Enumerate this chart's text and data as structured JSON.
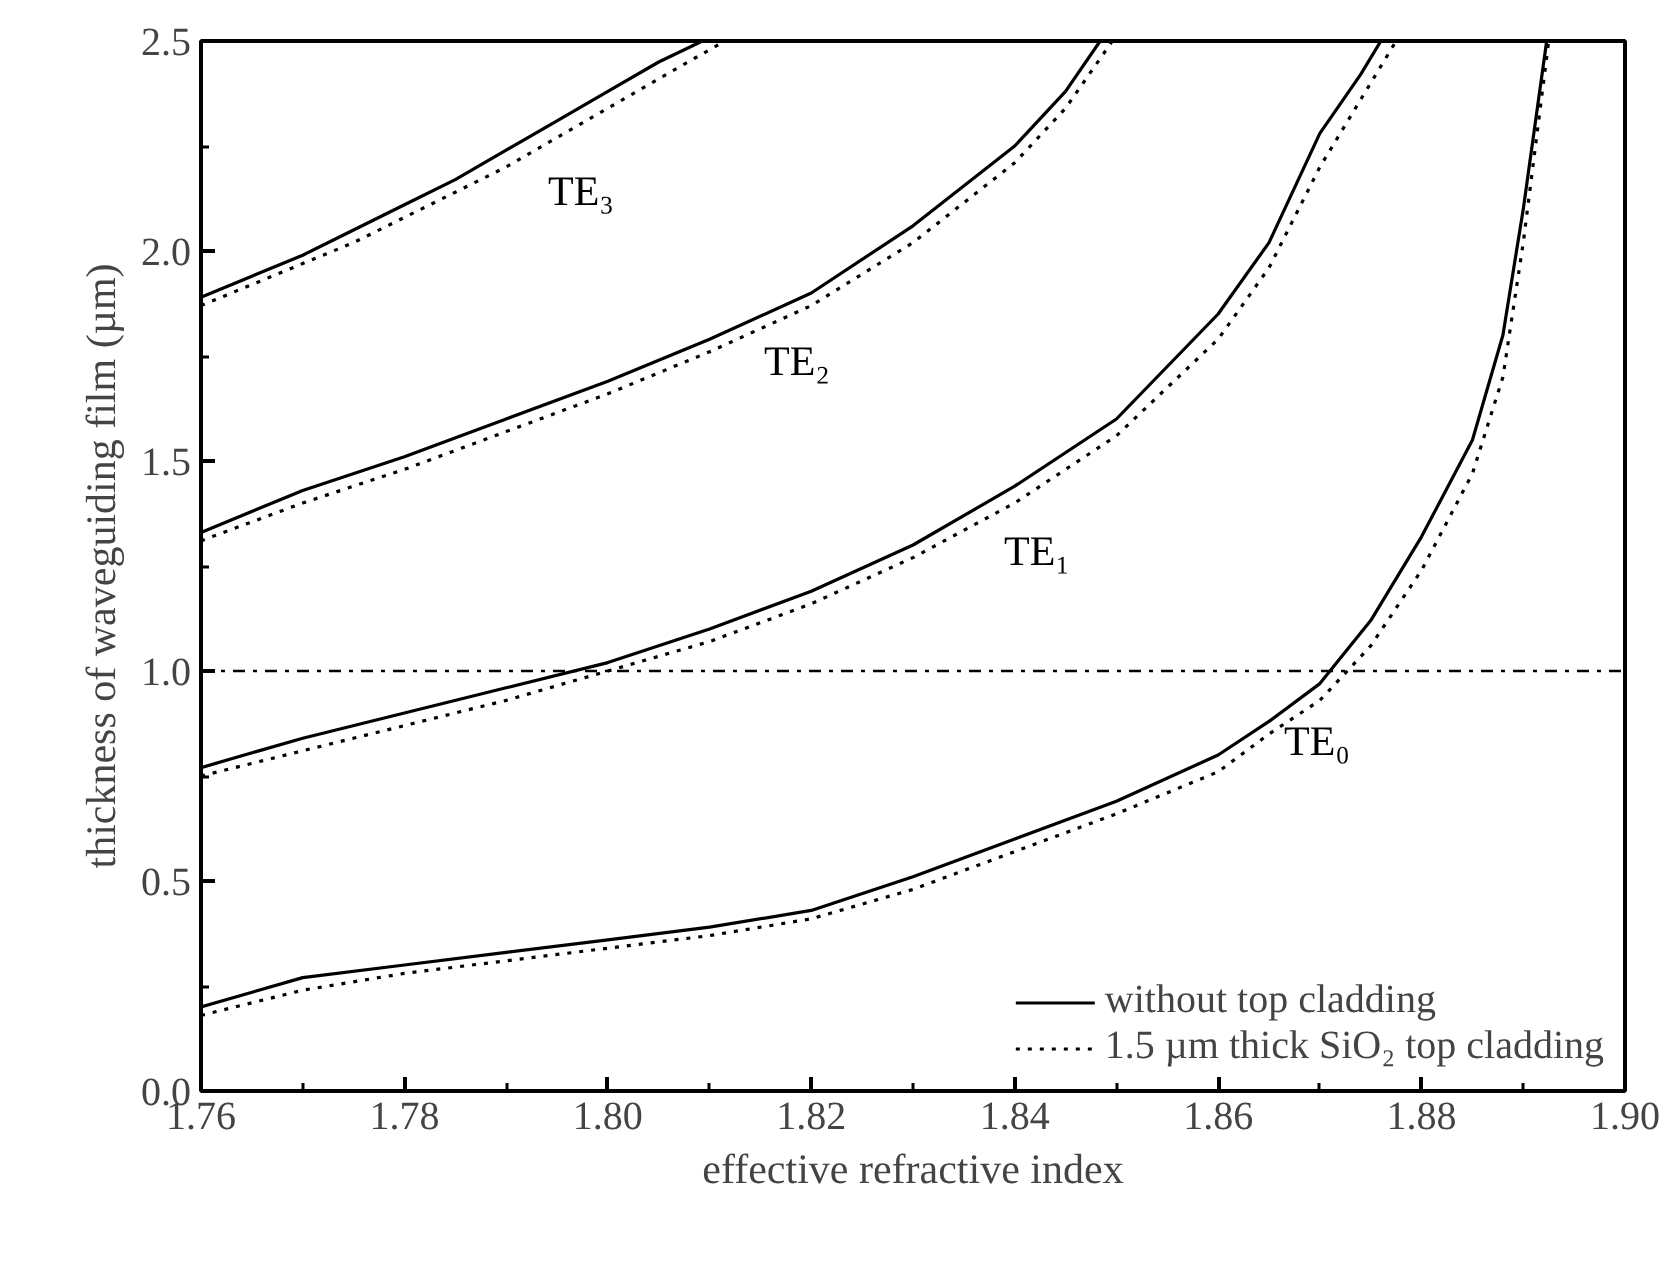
{
  "chart_data": {
    "type": "line",
    "xlabel": "effective refractive index",
    "ylabel": "thickness of waveguiding film (µm)",
    "xlim": [
      1.76,
      1.9
    ],
    "ylim": [
      0,
      2.5
    ],
    "xticks": [
      1.76,
      1.78,
      {
        "value": 1.8,
        "label": "1.80"
      },
      1.82,
      1.84,
      1.86,
      1.88,
      {
        "value": 1.9,
        "label": "1.90"
      }
    ],
    "yticks": [
      {
        "value": 0,
        "label": "0.0"
      },
      0.5,
      {
        "value": 1,
        "label": "1.0"
      },
      1.5,
      {
        "value": 2,
        "label": "2.0"
      },
      2.5
    ],
    "grid": false,
    "legend": "bottom right",
    "marker": "none",
    "series": [
      {
        "name": "without top cladding",
        "color": "#000000",
        "line_style": "solid",
        "x": [
          1.76,
          1.77,
          1.78,
          1.79,
          1.8,
          1.81,
          1.82,
          1.83,
          1.84,
          1.85,
          1.86,
          1.865,
          1.87,
          1.875,
          1.88,
          1.885,
          1.888,
          1.89,
          1.8923
        ],
        "values": [
          0.2,
          0.27,
          0.3,
          0.33,
          0.36,
          0.39,
          0.43,
          0.51,
          0.6,
          0.69,
          0.8,
          0.88,
          0.97,
          1.12,
          1.32,
          1.55,
          1.8,
          2.1,
          2.5
        ]
      },
      {
        "name": "1.5 µm thick SiO₂ top cladding",
        "color": "#000000",
        "line_style": "dotted",
        "x": [
          1.76,
          1.77,
          1.78,
          1.79,
          1.8,
          1.81,
          1.82,
          1.83,
          1.84,
          1.85,
          1.86,
          1.865,
          1.87,
          1.875,
          1.88,
          1.885,
          1.888,
          1.89,
          1.8925
        ],
        "values": [
          0.18,
          0.24,
          0.28,
          0.31,
          0.34,
          0.37,
          0.41,
          0.48,
          0.57,
          0.66,
          0.76,
          0.85,
          0.93,
          1.06,
          1.24,
          1.47,
          1.7,
          2.02,
          2.5
        ]
      },
      {
        "color": "#000000",
        "line_style": "solid",
        "x": [
          1.76,
          1.77,
          1.78,
          1.79,
          1.8,
          1.81,
          1.82,
          1.83,
          1.84,
          1.85,
          1.86,
          1.865,
          1.87,
          1.874,
          1.876
        ],
        "values": [
          0.77,
          0.84,
          0.9,
          0.96,
          1.02,
          1.1,
          1.19,
          1.3,
          1.44,
          1.6,
          1.85,
          2.02,
          2.28,
          2.42,
          2.5
        ]
      },
      {
        "color": "#000000",
        "line_style": "dotted",
        "x": [
          1.76,
          1.77,
          1.78,
          1.79,
          1.8,
          1.81,
          1.82,
          1.83,
          1.84,
          1.85,
          1.86,
          1.865,
          1.87,
          1.875,
          1.8775
        ],
        "values": [
          0.75,
          0.81,
          0.87,
          0.93,
          1.0,
          1.07,
          1.16,
          1.27,
          1.4,
          1.56,
          1.79,
          1.96,
          2.2,
          2.4,
          2.5
        ]
      },
      {
        "color": "#000000",
        "line_style": "solid",
        "x": [
          1.76,
          1.77,
          1.78,
          1.79,
          1.8,
          1.81,
          1.82,
          1.83,
          1.84,
          1.845,
          1.8484
        ],
        "values": [
          1.33,
          1.43,
          1.51,
          1.6,
          1.69,
          1.79,
          1.9,
          2.06,
          2.25,
          2.38,
          2.5
        ]
      },
      {
        "color": "#000000",
        "line_style": "dotted",
        "x": [
          1.76,
          1.77,
          1.78,
          1.79,
          1.8,
          1.81,
          1.82,
          1.83,
          1.84,
          1.845,
          1.8496
        ],
        "values": [
          1.31,
          1.4,
          1.48,
          1.57,
          1.66,
          1.76,
          1.87,
          2.02,
          2.21,
          2.34,
          2.5
        ]
      },
      {
        "color": "#000000",
        "line_style": "solid",
        "x": [
          1.76,
          1.765,
          1.77,
          1.775,
          1.78,
          1.785,
          1.79,
          1.795,
          1.8,
          1.805,
          1.8093
        ],
        "values": [
          1.89,
          1.94,
          1.99,
          2.05,
          2.11,
          2.17,
          2.24,
          2.31,
          2.38,
          2.45,
          2.5
        ]
      },
      {
        "color": "#000000",
        "line_style": "dotted",
        "x": [
          1.76,
          1.765,
          1.77,
          1.775,
          1.78,
          1.785,
          1.79,
          1.795,
          1.8,
          1.805,
          1.8115
        ],
        "values": [
          1.87,
          1.92,
          1.97,
          2.02,
          2.08,
          2.14,
          2.2,
          2.27,
          2.34,
          2.41,
          2.5
        ]
      }
    ],
    "ref_lines": [
      {
        "axis": "y",
        "value": 1.0,
        "color": "#000000",
        "line_style": "dashdot"
      }
    ],
    "annotations": [
      "TE₀",
      "TE₁",
      "TE₂",
      "TE₃"
    ]
  }
}
